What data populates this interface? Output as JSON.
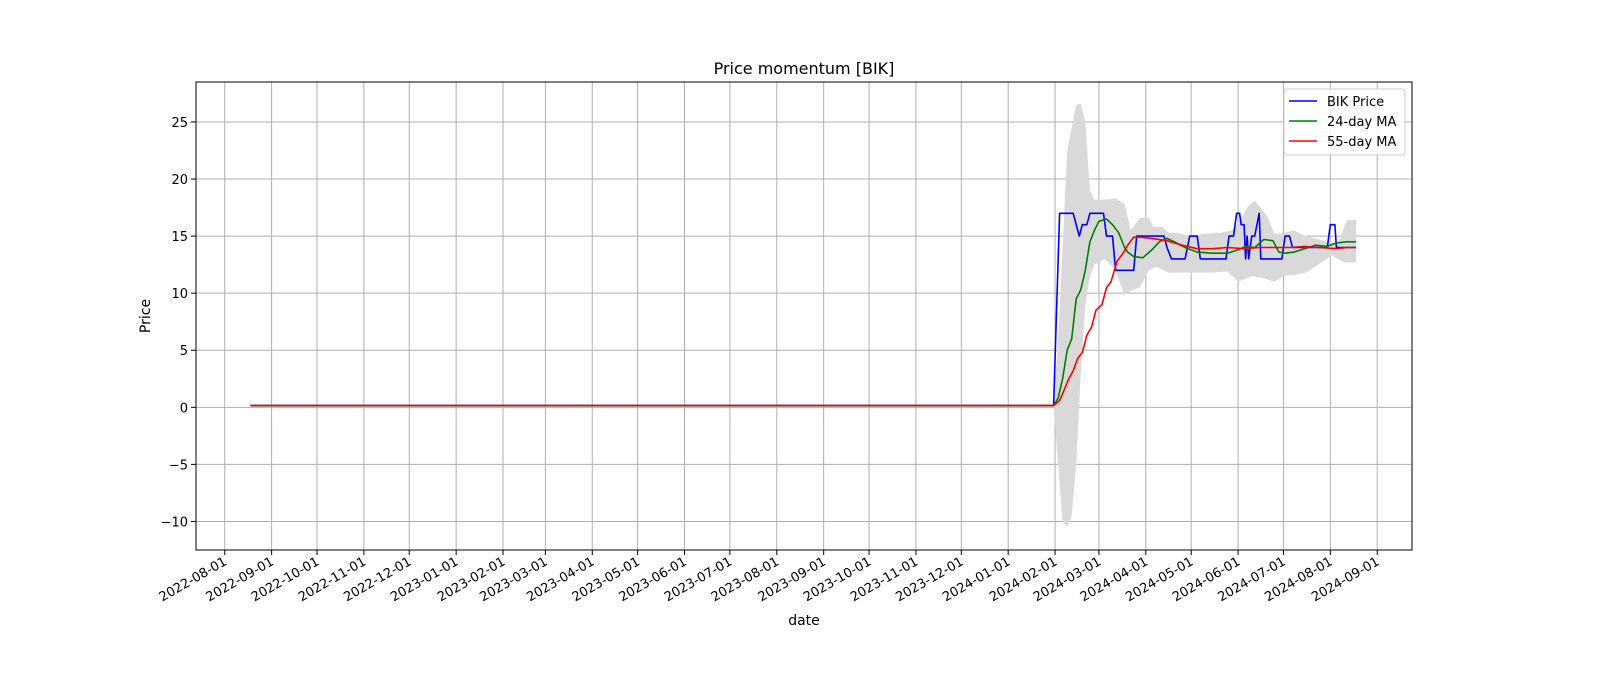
{
  "chart_data": {
    "type": "line",
    "title": "Price momentum [BIK]",
    "xlabel": "date",
    "ylabel": "Price",
    "xlim": [
      "2022-07-13",
      "2024-09-24"
    ],
    "ylim": [
      -12.5,
      28.5
    ],
    "grid": true,
    "legend_position": "top-right",
    "x_ticks": [
      "2022-08-01",
      "2022-09-01",
      "2022-10-01",
      "2022-11-01",
      "2022-12-01",
      "2023-01-01",
      "2023-02-01",
      "2023-03-01",
      "2023-04-01",
      "2023-05-01",
      "2023-06-01",
      "2023-07-01",
      "2023-08-01",
      "2023-09-01",
      "2023-10-01",
      "2023-11-01",
      "2023-12-01",
      "2024-01-01",
      "2024-02-01",
      "2024-03-01",
      "2024-04-01",
      "2024-05-01",
      "2024-06-01",
      "2024-07-01",
      "2024-08-01",
      "2024-09-01"
    ],
    "y_ticks": [
      -10,
      -5,
      0,
      5,
      10,
      15,
      20,
      25
    ],
    "y_tick_labels": [
      "−10",
      "−5",
      "0",
      "5",
      "10",
      "15",
      "20",
      "25"
    ],
    "band": {
      "color": "#d9d9d9",
      "upper": [
        [
          "2022-08-18",
          0.2
        ],
        [
          "2024-01-31",
          0.2
        ],
        [
          "2024-02-03",
          6
        ],
        [
          "2024-02-06",
          14
        ],
        [
          "2024-02-09",
          22.5
        ],
        [
          "2024-02-12",
          24.5
        ],
        [
          "2024-02-15",
          26.5
        ],
        [
          "2024-02-18",
          26.6
        ],
        [
          "2024-02-21",
          25
        ],
        [
          "2024-02-24",
          19
        ],
        [
          "2024-02-27",
          18.2
        ],
        [
          "2024-03-05",
          18.2
        ],
        [
          "2024-03-12",
          18.3
        ],
        [
          "2024-03-18",
          17.8
        ],
        [
          "2024-03-22",
          15.5
        ],
        [
          "2024-03-28",
          16.6
        ],
        [
          "2024-04-03",
          16.6
        ],
        [
          "2024-04-06",
          15.8
        ],
        [
          "2024-04-12",
          15.8
        ],
        [
          "2024-04-16",
          15.3
        ],
        [
          "2024-04-22",
          15.3
        ],
        [
          "2024-04-30",
          15
        ],
        [
          "2024-05-10",
          15.2
        ],
        [
          "2024-05-20",
          15.3
        ],
        [
          "2024-05-28",
          15.5
        ],
        [
          "2024-06-03",
          16.5
        ],
        [
          "2024-06-08",
          17.7
        ],
        [
          "2024-06-12",
          18.1
        ],
        [
          "2024-06-16",
          17.5
        ],
        [
          "2024-06-20",
          16.8
        ],
        [
          "2024-06-25",
          15.2
        ],
        [
          "2024-07-02",
          15.3
        ],
        [
          "2024-07-08",
          15.5
        ],
        [
          "2024-07-14",
          15.1
        ],
        [
          "2024-07-22",
          14.8
        ],
        [
          "2024-07-30",
          14.5
        ],
        [
          "2024-08-06",
          14.4
        ],
        [
          "2024-08-12",
          16.4
        ],
        [
          "2024-08-16",
          16.4
        ],
        [
          "2024-08-18",
          16.4
        ]
      ],
      "lower": [
        [
          "2022-08-18",
          0.1
        ],
        [
          "2024-01-31",
          0.1
        ],
        [
          "2024-02-03",
          -5
        ],
        [
          "2024-02-06",
          -10
        ],
        [
          "2024-02-09",
          -10.5
        ],
        [
          "2024-02-12",
          -9.5
        ],
        [
          "2024-02-15",
          -5
        ],
        [
          "2024-02-18",
          3
        ],
        [
          "2024-02-21",
          9
        ],
        [
          "2024-02-24",
          11.5
        ],
        [
          "2024-02-27",
          12.5
        ],
        [
          "2024-03-05",
          13
        ],
        [
          "2024-03-12",
          12
        ],
        [
          "2024-03-18",
          9.8
        ],
        [
          "2024-03-22",
          10.2
        ],
        [
          "2024-03-28",
          10.5
        ],
        [
          "2024-04-03",
          12
        ],
        [
          "2024-04-08",
          12.3
        ],
        [
          "2024-04-16",
          11.8
        ],
        [
          "2024-04-25",
          11.8
        ],
        [
          "2024-05-05",
          11.8
        ],
        [
          "2024-05-15",
          11.8
        ],
        [
          "2024-05-25",
          11.9
        ],
        [
          "2024-06-01",
          11
        ],
        [
          "2024-06-10",
          11.5
        ],
        [
          "2024-06-18",
          11.3
        ],
        [
          "2024-06-25",
          11
        ],
        [
          "2024-07-01",
          11.5
        ],
        [
          "2024-07-08",
          11.6
        ],
        [
          "2024-07-16",
          11.8
        ],
        [
          "2024-07-24",
          12.5
        ],
        [
          "2024-08-02",
          13.3
        ],
        [
          "2024-08-10",
          12.7
        ],
        [
          "2024-08-18",
          12.7
        ]
      ]
    },
    "series": [
      {
        "name": "BIK Price",
        "color": "#0000ff",
        "points": [
          [
            "2022-08-18",
            0.15
          ],
          [
            "2024-01-31",
            0.15
          ],
          [
            "2024-02-04",
            17
          ],
          [
            "2024-02-13",
            17
          ],
          [
            "2024-02-15",
            16
          ],
          [
            "2024-02-17",
            15
          ],
          [
            "2024-02-19",
            16
          ],
          [
            "2024-02-22",
            16
          ],
          [
            "2024-02-24",
            17
          ],
          [
            "2024-03-04",
            17
          ],
          [
            "2024-03-06",
            15
          ],
          [
            "2024-03-10",
            15
          ],
          [
            "2024-03-12",
            12
          ],
          [
            "2024-03-24",
            12
          ],
          [
            "2024-03-26",
            15
          ],
          [
            "2024-04-13",
            15
          ],
          [
            "2024-04-15",
            14
          ],
          [
            "2024-04-18",
            13
          ],
          [
            "2024-04-27",
            13
          ],
          [
            "2024-04-30",
            15
          ],
          [
            "2024-05-05",
            15
          ],
          [
            "2024-05-07",
            13
          ],
          [
            "2024-05-24",
            13
          ],
          [
            "2024-05-26",
            15
          ],
          [
            "2024-05-29",
            15
          ],
          [
            "2024-05-31",
            17
          ],
          [
            "2024-06-02",
            17
          ],
          [
            "2024-06-03",
            16
          ],
          [
            "2024-06-05",
            16
          ],
          [
            "2024-06-06",
            13
          ],
          [
            "2024-06-07",
            15
          ],
          [
            "2024-06-08",
            13
          ],
          [
            "2024-06-10",
            15
          ],
          [
            "2024-06-12",
            15
          ],
          [
            "2024-06-15",
            17
          ],
          [
            "2024-06-16",
            13
          ],
          [
            "2024-06-30",
            13
          ],
          [
            "2024-07-02",
            15
          ],
          [
            "2024-07-05",
            15
          ],
          [
            "2024-07-07",
            14
          ],
          [
            "2024-07-30",
            14
          ],
          [
            "2024-08-01",
            16
          ],
          [
            "2024-08-04",
            16
          ],
          [
            "2024-08-05",
            14
          ],
          [
            "2024-08-18",
            14
          ]
        ]
      },
      {
        "name": "24-day MA",
        "color": "#008000",
        "points": [
          [
            "2022-08-18",
            0.15
          ],
          [
            "2024-01-31",
            0.15
          ],
          [
            "2024-02-03",
            0.8
          ],
          [
            "2024-02-06",
            2.5
          ],
          [
            "2024-02-09",
            5
          ],
          [
            "2024-02-12",
            6
          ],
          [
            "2024-02-15",
            9.5
          ],
          [
            "2024-02-18",
            10.3
          ],
          [
            "2024-02-21",
            12
          ],
          [
            "2024-02-24",
            14.5
          ],
          [
            "2024-02-27",
            15.5
          ],
          [
            "2024-03-01",
            16.3
          ],
          [
            "2024-03-06",
            16.5
          ],
          [
            "2024-03-10",
            16
          ],
          [
            "2024-03-14",
            15.3
          ],
          [
            "2024-03-18",
            14
          ],
          [
            "2024-03-20",
            13.6
          ],
          [
            "2024-03-24",
            13.2
          ],
          [
            "2024-03-30",
            13.1
          ],
          [
            "2024-04-05",
            13.8
          ],
          [
            "2024-04-10",
            14.5
          ],
          [
            "2024-04-15",
            14.8
          ],
          [
            "2024-04-20",
            14.5
          ],
          [
            "2024-04-27",
            14
          ],
          [
            "2024-05-05",
            13.6
          ],
          [
            "2024-05-15",
            13.5
          ],
          [
            "2024-05-25",
            13.5
          ],
          [
            "2024-06-01",
            13.8
          ],
          [
            "2024-06-06",
            14.1
          ],
          [
            "2024-06-12",
            14
          ],
          [
            "2024-06-18",
            14.7
          ],
          [
            "2024-06-24",
            14.6
          ],
          [
            "2024-06-28",
            13.6
          ],
          [
            "2024-07-02",
            13.5
          ],
          [
            "2024-07-08",
            13.6
          ],
          [
            "2024-07-15",
            13.9
          ],
          [
            "2024-07-22",
            14.2
          ],
          [
            "2024-07-30",
            14.1
          ],
          [
            "2024-08-05",
            14.4
          ],
          [
            "2024-08-12",
            14.5
          ],
          [
            "2024-08-18",
            14.5
          ]
        ]
      },
      {
        "name": "55-day MA",
        "color": "#ff0000",
        "points": [
          [
            "2022-08-18",
            0.15
          ],
          [
            "2024-01-31",
            0.15
          ],
          [
            "2024-02-04",
            0.6
          ],
          [
            "2024-02-07",
            1.5
          ],
          [
            "2024-02-10",
            2.5
          ],
          [
            "2024-02-13",
            3.2
          ],
          [
            "2024-02-16",
            4.3
          ],
          [
            "2024-02-19",
            4.8
          ],
          [
            "2024-02-22",
            6.3
          ],
          [
            "2024-02-25",
            7
          ],
          [
            "2024-02-28",
            8.5
          ],
          [
            "2024-03-03",
            9
          ],
          [
            "2024-03-06",
            10.5
          ],
          [
            "2024-03-09",
            11
          ],
          [
            "2024-03-13",
            12.8
          ],
          [
            "2024-03-17",
            13.5
          ],
          [
            "2024-03-20",
            14.2
          ],
          [
            "2024-03-24",
            14.9
          ],
          [
            "2024-03-28",
            14.9
          ],
          [
            "2024-04-05",
            14.8
          ],
          [
            "2024-04-15",
            14.6
          ],
          [
            "2024-04-25",
            14.2
          ],
          [
            "2024-05-05",
            13.9
          ],
          [
            "2024-05-15",
            13.9
          ],
          [
            "2024-05-25",
            14
          ],
          [
            "2024-06-05",
            13.9
          ],
          [
            "2024-06-15",
            14
          ],
          [
            "2024-06-25",
            14
          ],
          [
            "2024-07-05",
            14
          ],
          [
            "2024-07-15",
            14.1
          ],
          [
            "2024-07-25",
            14
          ],
          [
            "2024-08-05",
            13.9
          ],
          [
            "2024-08-12",
            14
          ],
          [
            "2024-08-18",
            14
          ]
        ]
      }
    ]
  }
}
